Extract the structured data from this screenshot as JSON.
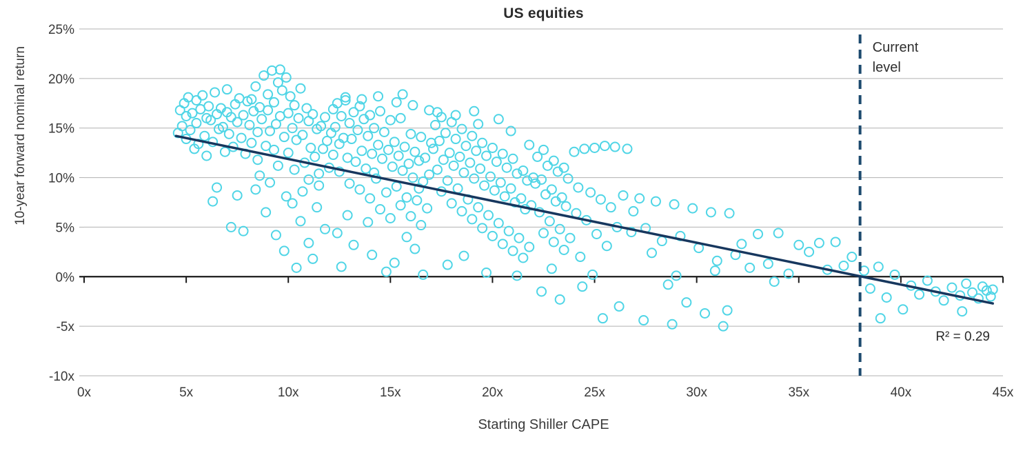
{
  "chart_data": {
    "type": "scatter",
    "title": "US equities",
    "xlabel": "Starting Shiller CAPE",
    "ylabel": "10-year forward nominal return",
    "r2_label": "R² = 0.29",
    "r_squared": 0.29,
    "current_level_label": "Current level",
    "current_level_x": 38,
    "xlim": [
      0,
      45
    ],
    "ylim": [
      -10,
      25
    ],
    "x_tick_values": [
      0,
      5,
      10,
      15,
      20,
      25,
      30,
      35,
      40,
      45
    ],
    "x_tick_labels": [
      "0x",
      "5x",
      "10x",
      "15x",
      "20x",
      "25x",
      "30x",
      "35x",
      "40x",
      "45x"
    ],
    "y_tick_values": [
      25,
      20,
      15,
      10,
      5,
      0,
      -5,
      -10
    ],
    "y_tick_labels": [
      "25%",
      "20%",
      "15%",
      "10%",
      "5%",
      "0%",
      "-5x",
      "-10x"
    ],
    "grid": "horizontal",
    "legend": "none",
    "colors": {
      "points": "#4fd5e6",
      "trend": "#17375e",
      "current_line": "#1d4a6e",
      "grid": "#b0b0b0",
      "axis": "#1a1a1a",
      "text": "#3a3a3a"
    },
    "trend_line": {
      "x1": 4.5,
      "y1": 14.2,
      "x2": 44.5,
      "y2": -2.7
    },
    "points": [
      [
        4.6,
        14.5
      ],
      [
        4.7,
        16.8
      ],
      [
        4.8,
        15.2
      ],
      [
        4.9,
        17.5
      ],
      [
        5.0,
        13.9
      ],
      [
        5.0,
        16.2
      ],
      [
        5.1,
        18.1
      ],
      [
        5.2,
        14.8
      ],
      [
        5.3,
        16.5
      ],
      [
        5.4,
        12.9
      ],
      [
        5.5,
        17.8
      ],
      [
        5.5,
        15.5
      ],
      [
        5.6,
        13.4
      ],
      [
        5.7,
        16.9
      ],
      [
        5.8,
        18.3
      ],
      [
        5.9,
        14.2
      ],
      [
        6.0,
        16.0
      ],
      [
        6.0,
        12.2
      ],
      [
        6.1,
        17.2
      ],
      [
        6.2,
        15.8
      ],
      [
        6.3,
        13.6
      ],
      [
        6.4,
        18.6
      ],
      [
        6.5,
        16.4
      ],
      [
        6.5,
        9.0
      ],
      [
        6.6,
        14.9
      ],
      [
        6.7,
        17.0
      ],
      [
        6.8,
        15.1
      ],
      [
        6.9,
        12.6
      ],
      [
        7.0,
        16.6
      ],
      [
        7.0,
        18.9
      ],
      [
        7.1,
        14.4
      ],
      [
        7.2,
        16.1
      ],
      [
        7.3,
        13.1
      ],
      [
        7.4,
        17.4
      ],
      [
        7.5,
        15.6
      ],
      [
        7.5,
        8.2
      ],
      [
        7.6,
        18.0
      ],
      [
        7.7,
        14.0
      ],
      [
        7.8,
        16.3
      ],
      [
        7.9,
        12.4
      ],
      [
        8.0,
        17.7
      ],
      [
        6.3,
        7.6
      ],
      [
        7.2,
        5.0
      ],
      [
        7.8,
        4.6
      ],
      [
        8.1,
        15.3
      ],
      [
        8.2,
        17.9
      ],
      [
        8.2,
        13.5
      ],
      [
        8.3,
        16.7
      ],
      [
        8.4,
        19.2
      ],
      [
        8.5,
        14.6
      ],
      [
        8.5,
        11.8
      ],
      [
        8.6,
        17.1
      ],
      [
        8.7,
        15.9
      ],
      [
        8.8,
        20.3
      ],
      [
        8.9,
        13.2
      ],
      [
        9.0,
        16.8
      ],
      [
        9.0,
        18.4
      ],
      [
        9.1,
        14.7
      ],
      [
        9.2,
        20.8
      ],
      [
        9.3,
        12.8
      ],
      [
        9.3,
        17.6
      ],
      [
        9.4,
        15.4
      ],
      [
        9.5,
        19.6
      ],
      [
        9.5,
        11.2
      ],
      [
        9.6,
        16.2
      ],
      [
        9.7,
        18.8
      ],
      [
        9.8,
        14.1
      ],
      [
        9.9,
        20.1
      ],
      [
        10.0,
        16.5
      ],
      [
        10.0,
        12.5
      ],
      [
        10.1,
        18.2
      ],
      [
        10.2,
        15.0
      ],
      [
        10.3,
        17.3
      ],
      [
        10.3,
        10.8
      ],
      [
        10.4,
        13.8
      ],
      [
        10.5,
        16.0
      ],
      [
        10.6,
        19.0
      ],
      [
        10.7,
        14.3
      ],
      [
        10.8,
        11.5
      ],
      [
        10.9,
        17.0
      ],
      [
        11.0,
        15.7
      ],
      [
        11.0,
        9.8
      ],
      [
        11.1,
        13.0
      ],
      [
        11.2,
        16.4
      ],
      [
        11.3,
        12.1
      ],
      [
        11.4,
        14.9
      ],
      [
        11.5,
        10.4
      ],
      [
        11.6,
        15.2
      ],
      [
        11.7,
        12.9
      ],
      [
        11.8,
        16.1
      ],
      [
        11.9,
        13.7
      ],
      [
        12.0,
        11.0
      ],
      [
        8.4,
        8.8
      ],
      [
        8.9,
        6.5
      ],
      [
        9.4,
        4.2
      ],
      [
        9.8,
        2.6
      ],
      [
        10.2,
        7.4
      ],
      [
        10.6,
        5.6
      ],
      [
        11.0,
        3.4
      ],
      [
        11.4,
        7.0
      ],
      [
        11.8,
        4.8
      ],
      [
        9.1,
        9.5
      ],
      [
        9.9,
        8.1
      ],
      [
        10.7,
        8.6
      ],
      [
        11.5,
        9.2
      ],
      [
        8.6,
        10.2
      ],
      [
        11.2,
        1.8
      ],
      [
        10.4,
        0.9
      ],
      [
        9.6,
        20.9
      ],
      [
        12.1,
        14.5
      ],
      [
        12.2,
        16.9
      ],
      [
        12.2,
        12.3
      ],
      [
        12.3,
        15.1
      ],
      [
        12.4,
        17.5
      ],
      [
        12.5,
        13.4
      ],
      [
        12.5,
        10.6
      ],
      [
        12.6,
        16.2
      ],
      [
        12.7,
        14.0
      ],
      [
        12.8,
        17.8
      ],
      [
        12.9,
        12.0
      ],
      [
        13.0,
        15.5
      ],
      [
        13.0,
        9.4
      ],
      [
        13.1,
        13.9
      ],
      [
        13.2,
        16.6
      ],
      [
        13.3,
        11.6
      ],
      [
        13.4,
        14.8
      ],
      [
        13.5,
        17.2
      ],
      [
        13.5,
        8.8
      ],
      [
        13.6,
        12.7
      ],
      [
        13.7,
        15.9
      ],
      [
        13.8,
        10.9
      ],
      [
        13.9,
        14.2
      ],
      [
        14.0,
        16.3
      ],
      [
        14.0,
        7.9
      ],
      [
        14.1,
        12.4
      ],
      [
        14.2,
        15.0
      ],
      [
        14.3,
        9.9
      ],
      [
        14.4,
        13.3
      ],
      [
        14.5,
        16.7
      ],
      [
        14.5,
        6.8
      ],
      [
        14.6,
        11.9
      ],
      [
        14.7,
        14.6
      ],
      [
        14.8,
        8.5
      ],
      [
        14.9,
        12.8
      ],
      [
        15.0,
        15.8
      ],
      [
        15.0,
        5.9
      ],
      [
        15.1,
        11.1
      ],
      [
        15.2,
        13.6
      ],
      [
        15.3,
        9.1
      ],
      [
        15.4,
        12.2
      ],
      [
        15.5,
        16.0
      ],
      [
        15.5,
        7.2
      ],
      [
        15.6,
        10.7
      ],
      [
        15.7,
        13.1
      ],
      [
        15.8,
        8.0
      ],
      [
        15.9,
        11.4
      ],
      [
        16.0,
        14.4
      ],
      [
        16.0,
        6.1
      ],
      [
        16.1,
        10.0
      ],
      [
        16.2,
        12.6
      ],
      [
        16.3,
        7.7
      ],
      [
        16.4,
        11.7
      ],
      [
        16.5,
        14.1
      ],
      [
        16.5,
        5.2
      ],
      [
        16.6,
        9.6
      ],
      [
        16.7,
        12.0
      ],
      [
        16.8,
        6.9
      ],
      [
        16.9,
        10.3
      ],
      [
        17.0,
        13.5
      ],
      [
        12.4,
        4.4
      ],
      [
        13.2,
        3.2
      ],
      [
        14.1,
        2.2
      ],
      [
        15.2,
        1.4
      ],
      [
        16.2,
        2.8
      ],
      [
        12.8,
        18.1
      ],
      [
        13.6,
        17.9
      ],
      [
        14.4,
        18.2
      ],
      [
        15.3,
        17.6
      ],
      [
        16.1,
        17.3
      ],
      [
        16.9,
        16.8
      ],
      [
        12.6,
        1.0
      ],
      [
        14.8,
        0.5
      ],
      [
        16.6,
        0.2
      ],
      [
        13.9,
        5.5
      ],
      [
        15.8,
        4.0
      ],
      [
        12.9,
        6.2
      ],
      [
        16.4,
        8.9
      ],
      [
        15.6,
        18.4
      ],
      [
        14.2,
        10.5
      ],
      [
        17.1,
        12.9
      ],
      [
        17.2,
        15.3
      ],
      [
        17.3,
        10.8
      ],
      [
        17.4,
        13.7
      ],
      [
        17.5,
        8.6
      ],
      [
        17.5,
        16.1
      ],
      [
        17.6,
        11.8
      ],
      [
        17.7,
        14.5
      ],
      [
        17.8,
        9.7
      ],
      [
        17.9,
        12.5
      ],
      [
        18.0,
        15.6
      ],
      [
        18.0,
        7.4
      ],
      [
        18.1,
        11.2
      ],
      [
        18.2,
        13.9
      ],
      [
        18.3,
        8.9
      ],
      [
        18.4,
        12.1
      ],
      [
        18.5,
        14.9
      ],
      [
        18.5,
        6.6
      ],
      [
        18.6,
        10.5
      ],
      [
        18.7,
        13.2
      ],
      [
        18.8,
        7.8
      ],
      [
        18.9,
        11.5
      ],
      [
        19.0,
        14.2
      ],
      [
        19.0,
        5.8
      ],
      [
        19.1,
        9.9
      ],
      [
        19.2,
        12.7
      ],
      [
        19.3,
        7.0
      ],
      [
        19.4,
        10.9
      ],
      [
        19.5,
        13.5
      ],
      [
        19.5,
        4.9
      ],
      [
        19.6,
        9.2
      ],
      [
        19.7,
        12.2
      ],
      [
        19.8,
        6.2
      ],
      [
        19.9,
        10.1
      ],
      [
        20.0,
        13.0
      ],
      [
        20.0,
        4.1
      ],
      [
        20.1,
        8.7
      ],
      [
        20.2,
        11.6
      ],
      [
        20.3,
        5.4
      ],
      [
        20.4,
        9.5
      ],
      [
        20.5,
        12.4
      ],
      [
        20.5,
        3.3
      ],
      [
        20.6,
        8.1
      ],
      [
        20.7,
        11.0
      ],
      [
        20.8,
        4.6
      ],
      [
        20.9,
        8.9
      ],
      [
        21.0,
        11.9
      ],
      [
        21.0,
        2.6
      ],
      [
        21.1,
        7.5
      ],
      [
        21.2,
        10.4
      ],
      [
        21.3,
        3.9
      ],
      [
        21.4,
        7.9
      ],
      [
        21.5,
        10.7
      ],
      [
        21.5,
        1.9
      ],
      [
        21.6,
        6.8
      ],
      [
        21.7,
        9.7
      ],
      [
        21.8,
        3.0
      ],
      [
        21.9,
        7.2
      ],
      [
        22.0,
        10.0
      ],
      [
        17.3,
        16.6
      ],
      [
        18.2,
        16.3
      ],
      [
        19.1,
        16.7
      ],
      [
        20.3,
        15.9
      ],
      [
        17.8,
        1.2
      ],
      [
        19.7,
        0.4
      ],
      [
        21.2,
        0.1
      ],
      [
        18.6,
        2.1
      ],
      [
        20.9,
        14.7
      ],
      [
        21.8,
        13.3
      ],
      [
        19.3,
        15.4
      ],
      [
        22.1,
        9.4
      ],
      [
        22.2,
        12.1
      ],
      [
        22.3,
        6.5
      ],
      [
        22.4,
        9.8
      ],
      [
        22.5,
        12.8
      ],
      [
        22.5,
        4.4
      ],
      [
        22.6,
        8.3
      ],
      [
        22.7,
        11.2
      ],
      [
        22.8,
        5.6
      ],
      [
        22.9,
        8.8
      ],
      [
        23.0,
        11.7
      ],
      [
        23.0,
        3.5
      ],
      [
        23.1,
        7.6
      ],
      [
        23.2,
        10.6
      ],
      [
        23.3,
        4.8
      ],
      [
        23.4,
        8.0
      ],
      [
        23.5,
        11.0
      ],
      [
        23.5,
        2.7
      ],
      [
        23.6,
        7.1
      ],
      [
        23.7,
        9.9
      ],
      [
        23.8,
        3.9
      ],
      [
        24.0,
        12.6
      ],
      [
        24.1,
        6.4
      ],
      [
        24.2,
        9.0
      ],
      [
        24.3,
        2.0
      ],
      [
        24.5,
        12.9
      ],
      [
        24.6,
        5.7
      ],
      [
        24.8,
        8.5
      ],
      [
        25.0,
        13.0
      ],
      [
        25.1,
        4.3
      ],
      [
        25.3,
        7.8
      ],
      [
        25.5,
        13.2
      ],
      [
        25.6,
        3.1
      ],
      [
        25.8,
        7.0
      ],
      [
        26.0,
        13.1
      ],
      [
        26.1,
        5.0
      ],
      [
        26.4,
        8.2
      ],
      [
        26.6,
        12.9
      ],
      [
        26.8,
        4.5
      ],
      [
        22.4,
        -1.5
      ],
      [
        23.3,
        -2.3
      ],
      [
        24.4,
        -1.0
      ],
      [
        25.4,
        -4.2
      ],
      [
        26.2,
        -3.0
      ],
      [
        22.9,
        0.8
      ],
      [
        24.9,
        0.2
      ],
      [
        26.9,
        6.6
      ],
      [
        27.2,
        7.9
      ],
      [
        27.5,
        4.9
      ],
      [
        27.8,
        2.4
      ],
      [
        28.0,
        7.6
      ],
      [
        28.3,
        3.6
      ],
      [
        28.6,
        -0.8
      ],
      [
        28.9,
        7.3
      ],
      [
        29.2,
        4.1
      ],
      [
        29.5,
        -2.6
      ],
      [
        29.8,
        6.9
      ],
      [
        30.1,
        2.9
      ],
      [
        30.4,
        -3.7
      ],
      [
        30.7,
        6.5
      ],
      [
        31.0,
        1.6
      ],
      [
        31.3,
        -5.0
      ],
      [
        31.6,
        6.4
      ],
      [
        31.9,
        2.2
      ],
      [
        27.4,
        -4.4
      ],
      [
        28.8,
        -4.8
      ],
      [
        30.9,
        0.6
      ],
      [
        29.0,
        0.1
      ],
      [
        31.5,
        -3.4
      ],
      [
        32.2,
        3.3
      ],
      [
        32.6,
        0.9
      ],
      [
        33.0,
        4.3
      ],
      [
        33.5,
        1.3
      ],
      [
        34.0,
        4.4
      ],
      [
        34.5,
        0.3
      ],
      [
        35.0,
        3.2
      ],
      [
        35.5,
        2.5
      ],
      [
        36.0,
        3.4
      ],
      [
        36.4,
        0.7
      ],
      [
        36.8,
        3.5
      ],
      [
        37.2,
        1.1
      ],
      [
        37.6,
        2.0
      ],
      [
        33.8,
        -0.5
      ],
      [
        38.2,
        0.6
      ],
      [
        38.5,
        -1.2
      ],
      [
        38.9,
        1.0
      ],
      [
        39.3,
        -2.1
      ],
      [
        39.7,
        0.2
      ],
      [
        40.1,
        -3.3
      ],
      [
        40.5,
        -0.9
      ],
      [
        40.9,
        -1.8
      ],
      [
        41.3,
        -0.4
      ],
      [
        41.7,
        -1.5
      ],
      [
        42.1,
        -2.4
      ],
      [
        42.5,
        -1.1
      ],
      [
        42.9,
        -1.9
      ],
      [
        43.2,
        -0.7
      ],
      [
        43.5,
        -1.6
      ],
      [
        43.8,
        -2.2
      ],
      [
        44.0,
        -1.0
      ],
      [
        44.2,
        -1.4
      ],
      [
        44.4,
        -2.0
      ],
      [
        44.5,
        -1.3
      ],
      [
        39.0,
        -4.2
      ],
      [
        43.0,
        -3.5
      ]
    ]
  }
}
